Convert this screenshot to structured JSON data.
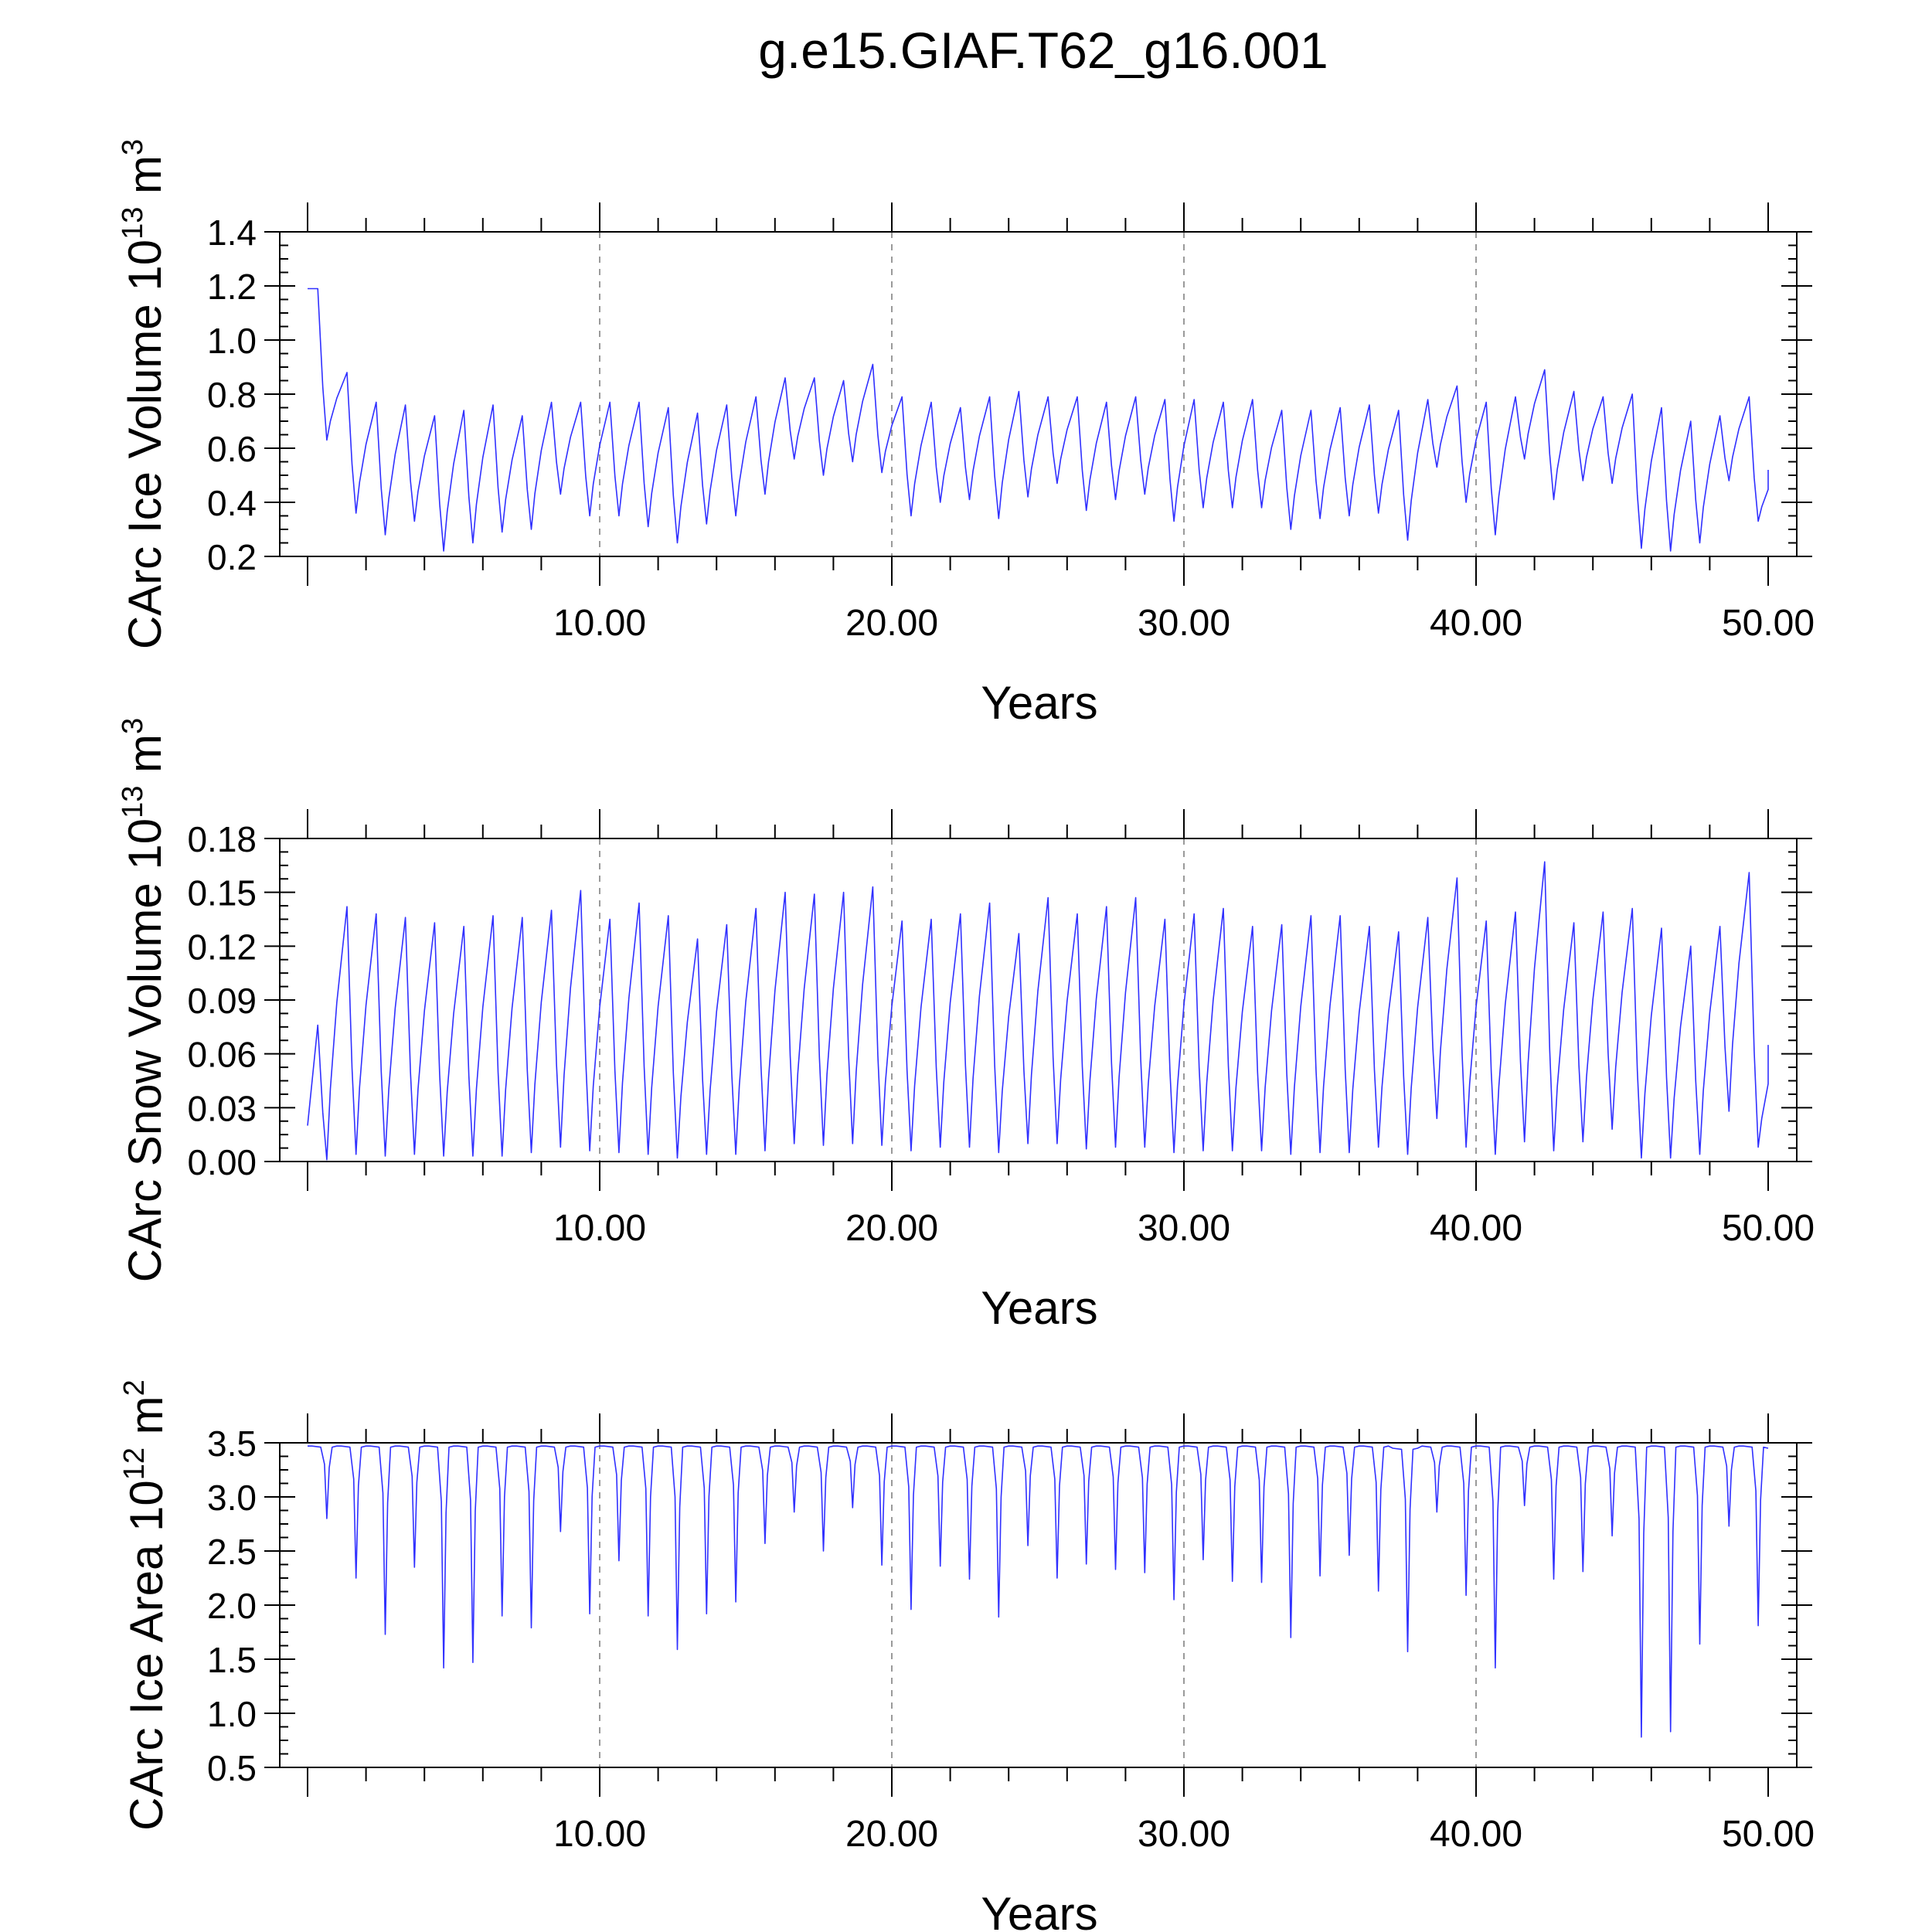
{
  "figure_title": "g.e15.GIAF.T62_g16.001",
  "colors": {
    "line": "#3030ff",
    "axis": "#000000",
    "grid": "#9a9a9a"
  },
  "chart_data": [
    {
      "type": "line",
      "ylabel_main": "CArc Ice Volume 10",
      "ylabel_sup": "13",
      "ylabel_unit": " m",
      "ylabel_unit_sup": "3",
      "xlabel": "Years",
      "xlim": [
        0,
        50
      ],
      "ylim": [
        0.2,
        1.4
      ],
      "yticks": [
        0.2,
        0.4,
        0.6,
        0.8,
        1.0,
        1.2,
        1.4
      ],
      "ytick_labels": [
        "0.2",
        "0.4",
        "0.6",
        "0.8",
        "1.0",
        "1.2",
        "1.4"
      ],
      "ytick_minor_step": 0.05,
      "xticks": [
        10,
        20,
        30,
        40,
        50
      ],
      "xtick_labels": [
        "10.00",
        "20.00",
        "30.00",
        "40.00",
        "50.00"
      ],
      "grid_x": [
        10,
        20,
        30,
        40
      ],
      "series": [
        {
          "name": "CArc Ice Volume",
          "start": {
            "year": 0,
            "value": 1.19
          },
          "annual_max": [
            1.19,
            0.88,
            0.77,
            0.76,
            0.72,
            0.74,
            0.76,
            0.72,
            0.77,
            0.77,
            0.77,
            0.77,
            0.75,
            0.73,
            0.76,
            0.79,
            0.86,
            0.86,
            0.85,
            0.91,
            0.79,
            0.77,
            0.75,
            0.79,
            0.81,
            0.79,
            0.79,
            0.77,
            0.79,
            0.78,
            0.78,
            0.77,
            0.78,
            0.74,
            0.74,
            0.75,
            0.76,
            0.74,
            0.78,
            0.83,
            0.77,
            0.79,
            0.89,
            0.81,
            0.79,
            0.8,
            0.75,
            0.7,
            0.72,
            0.79
          ],
          "annual_min": [
            0.63,
            0.36,
            0.28,
            0.33,
            0.22,
            0.25,
            0.29,
            0.3,
            0.43,
            0.35,
            0.35,
            0.31,
            0.25,
            0.32,
            0.35,
            0.43,
            0.56,
            0.5,
            0.55,
            0.51,
            0.35,
            0.4,
            0.41,
            0.34,
            0.42,
            0.47,
            0.37,
            0.41,
            0.43,
            0.33,
            0.38,
            0.38,
            0.38,
            0.3,
            0.34,
            0.35,
            0.36,
            0.26,
            0.53,
            0.4,
            0.28,
            0.56,
            0.41,
            0.48,
            0.47,
            0.23,
            0.22,
            0.25,
            0.48,
            0.33
          ],
          "end": {
            "year": 50,
            "value": 0.52
          }
        }
      ]
    },
    {
      "type": "line",
      "ylabel_main": "CArc Snow Volume 10",
      "ylabel_sup": "13",
      "ylabel_unit": " m",
      "ylabel_unit_sup": "3",
      "xlabel": "Years",
      "xlim": [
        0,
        50
      ],
      "ylim": [
        0.0,
        0.18
      ],
      "yticks": [
        0.0,
        0.03,
        0.06,
        0.09,
        0.12,
        0.15,
        0.18
      ],
      "ytick_labels": [
        "0.00",
        "0.03",
        "0.06",
        "0.09",
        "0.12",
        "0.15",
        "0.18"
      ],
      "ytick_minor_step": 0.0075,
      "xticks": [
        10,
        20,
        30,
        40,
        50
      ],
      "xtick_labels": [
        "10.00",
        "20.00",
        "30.00",
        "40.00",
        "50.00"
      ],
      "grid_x": [
        10,
        20,
        30,
        40
      ],
      "series": [
        {
          "name": "CArc Snow Volume",
          "start": {
            "year": 0,
            "value": 0.02
          },
          "annual_max": [
            0.076,
            0.142,
            0.138,
            0.136,
            0.133,
            0.131,
            0.137,
            0.136,
            0.14,
            0.151,
            0.135,
            0.144,
            0.137,
            0.124,
            0.132,
            0.141,
            0.15,
            0.149,
            0.15,
            0.153,
            0.134,
            0.135,
            0.138,
            0.144,
            0.127,
            0.147,
            0.138,
            0.142,
            0.147,
            0.135,
            0.138,
            0.141,
            0.131,
            0.132,
            0.137,
            0.137,
            0.131,
            0.128,
            0.136,
            0.158,
            0.134,
            0.139,
            0.167,
            0.133,
            0.139,
            0.141,
            0.13,
            0.12,
            0.131,
            0.161
          ],
          "annual_min": [
            0.001,
            0.004,
            0.003,
            0.004,
            0.003,
            0.003,
            0.003,
            0.005,
            0.008,
            0.006,
            0.005,
            0.004,
            0.002,
            0.004,
            0.004,
            0.006,
            0.01,
            0.009,
            0.01,
            0.009,
            0.006,
            0.008,
            0.008,
            0.005,
            0.01,
            0.01,
            0.007,
            0.008,
            0.008,
            0.005,
            0.006,
            0.006,
            0.006,
            0.004,
            0.005,
            0.005,
            0.008,
            0.004,
            0.024,
            0.008,
            0.004,
            0.011,
            0.006,
            0.011,
            0.018,
            0.002,
            0.002,
            0.004,
            0.028,
            0.008
          ],
          "end": {
            "year": 50,
            "value": 0.065
          }
        }
      ]
    },
    {
      "type": "line",
      "ylabel_main": "CArc Ice Area 10",
      "ylabel_sup": "12",
      "ylabel_unit": " m",
      "ylabel_unit_sup": "2",
      "xlabel": "Years",
      "xlim": [
        0,
        50
      ],
      "ylim": [
        0.5,
        3.5
      ],
      "yticks": [
        0.5,
        1.0,
        1.5,
        2.0,
        2.5,
        3.0,
        3.5
      ],
      "ytick_labels": [
        "0.5",
        "1.0",
        "1.5",
        "2.0",
        "2.5",
        "3.0",
        "3.5"
      ],
      "ytick_minor_step": 0.125,
      "xticks": [
        10,
        20,
        30,
        40,
        50
      ],
      "xtick_labels": [
        "10.00",
        "20.00",
        "30.00",
        "40.00",
        "50.00"
      ],
      "grid_x": [
        10,
        20,
        30,
        40
      ],
      "series": [
        {
          "name": "CArc Ice Area",
          "start": {
            "year": 0,
            "value": 3.47
          },
          "annual_max": [
            3.47,
            3.47,
            3.47,
            3.47,
            3.47,
            3.47,
            3.47,
            3.47,
            3.47,
            3.47,
            3.47,
            3.47,
            3.47,
            3.47,
            3.47,
            3.47,
            3.47,
            3.47,
            3.47,
            3.47,
            3.47,
            3.47,
            3.47,
            3.47,
            3.47,
            3.47,
            3.47,
            3.47,
            3.47,
            3.47,
            3.47,
            3.47,
            3.47,
            3.47,
            3.47,
            3.47,
            3.47,
            3.45,
            3.47,
            3.47,
            3.47,
            3.47,
            3.47,
            3.47,
            3.47,
            3.47,
            3.47,
            3.47,
            3.47,
            3.47
          ],
          "annual_min": [
            2.8,
            2.25,
            1.73,
            2.35,
            1.42,
            1.47,
            1.9,
            1.79,
            2.68,
            1.92,
            2.41,
            1.9,
            1.59,
            1.92,
            2.03,
            2.57,
            2.86,
            2.5,
            2.9,
            2.37,
            1.96,
            2.36,
            2.24,
            1.89,
            2.55,
            2.25,
            2.38,
            2.33,
            2.3,
            2.05,
            2.42,
            2.22,
            2.21,
            1.7,
            2.27,
            2.46,
            2.13,
            1.57,
            2.86,
            2.09,
            1.42,
            2.92,
            2.24,
            2.31,
            2.64,
            0.78,
            0.83,
            1.64,
            2.73,
            1.81
          ],
          "end": {
            "year": 50,
            "value": 3.45
          }
        }
      ]
    }
  ]
}
